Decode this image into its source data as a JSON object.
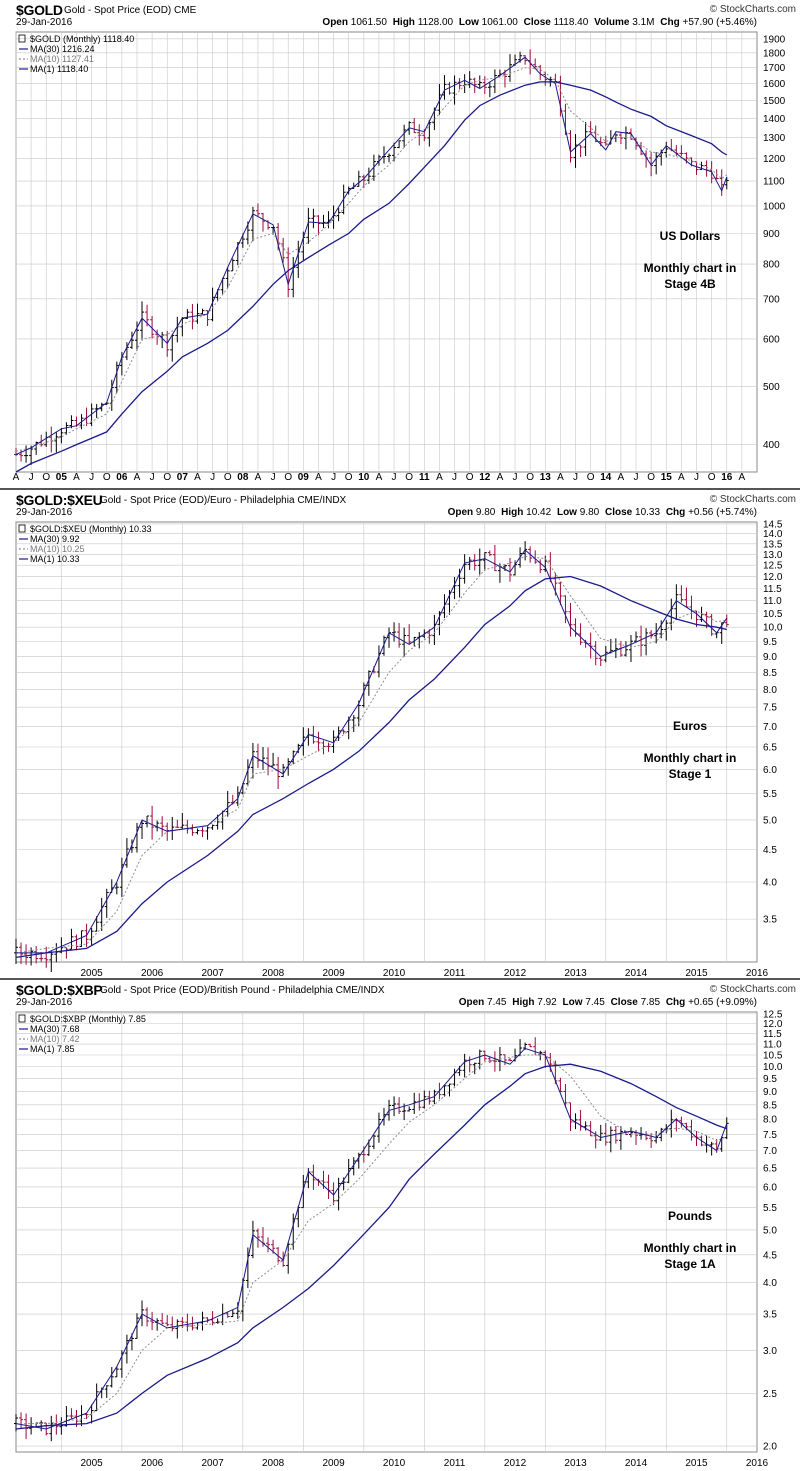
{
  "watermark": "© StockCharts.com",
  "colors": {
    "ma30": "#1a1a8c",
    "ma10": "#909090",
    "up": "#000000",
    "down": "#9b0a3a",
    "grid": "#c8c8c8"
  },
  "charts": [
    {
      "symbol": "$GOLD",
      "description": "Gold - Spot Price (EOD)",
      "exchange": "CME",
      "date": "29-Jan-2016",
      "ohlc": {
        "open_label": "Open",
        "open": "1061.50",
        "high_label": "High",
        "high": "1128.00",
        "low_label": "Low",
        "low": "1061.00",
        "close_label": "Close",
        "close": "1118.40",
        "volume_label": "Volume",
        "volume": "3.1M",
        "chg_label": "Chg",
        "chg": "+57.90 (+5.46%)"
      },
      "legend": [
        "$GOLD (Monthly) 1118.40",
        "MA(30) 1216.24",
        "MA(10) 1127.41",
        "MA(1) 1118.40"
      ],
      "annotations": [
        "US Dollars",
        "Monthly chart in",
        "Stage 4B"
      ]
    },
    {
      "symbol": "$GOLD:$XEU",
      "description": "Gold - Spot Price (EOD)/Euro - Philadelphia",
      "exchange": "CME/INDX",
      "date": "29-Jan-2016",
      "ohlc": {
        "open_label": "Open",
        "open": "9.80",
        "high_label": "High",
        "high": "10.42",
        "low_label": "Low",
        "low": "9.80",
        "close_label": "Close",
        "close": "10.33",
        "chg_label": "Chg",
        "chg": "+0.56 (+5.74%)"
      },
      "legend": [
        "$GOLD:$XEU (Monthly) 10.33",
        "MA(30) 9.92",
        "MA(10) 10.25",
        "MA(1) 10.33"
      ],
      "annotations": [
        "Euros",
        "Monthly chart in",
        "Stage 1"
      ]
    },
    {
      "symbol": "$GOLD:$XBP",
      "description": "Gold - Spot Price (EOD)/British Pound - Philadelphia",
      "exchange": "CME/INDX",
      "date": "29-Jan-2016",
      "ohlc": {
        "open_label": "Open",
        "open": "7.45",
        "high_label": "High",
        "high": "7.92",
        "low_label": "Low",
        "low": "7.45",
        "close_label": "Close",
        "close": "7.85",
        "chg_label": "Chg",
        "chg": "+0.65 (+9.09%)"
      },
      "legend": [
        "$GOLD:$XBP (Monthly) 7.85",
        "MA(30) 7.68",
        "MA(10) 7.42",
        "MA(1) 7.85"
      ],
      "annotations": [
        "Pounds",
        "Monthly chart in",
        "Stage 1A"
      ]
    }
  ],
  "chart_data": [
    {
      "type": "line",
      "title": "$GOLD Gold - Spot Price (EOD) CME (Monthly)",
      "yscale": "log",
      "ylim": [
        360,
        1950
      ],
      "yticks": [
        "400",
        "500",
        "600",
        "700",
        "800",
        "900",
        "1000",
        "1100",
        "1200",
        "1300",
        "1400",
        "1500",
        "1600",
        "1700",
        "1800",
        "1900"
      ],
      "xticks": [
        "A",
        "J",
        "O",
        "05",
        "A",
        "J",
        "O",
        "06",
        "A",
        "J",
        "O",
        "07",
        "A",
        "J",
        "O",
        "08",
        "A",
        "J",
        "O",
        "09",
        "A",
        "J",
        "O",
        "10",
        "A",
        "J",
        "O",
        "11",
        "A",
        "J",
        "O",
        "12",
        "A",
        "J",
        "O",
        "13",
        "A",
        "J",
        "O",
        "14",
        "A",
        "J",
        "O",
        "15",
        "A",
        "J",
        "O",
        "16",
        "A"
      ],
      "x": [
        "2004-04",
        "2004-07",
        "2005-01",
        "2005-04",
        "2005-10",
        "2006-01",
        "2006-05",
        "2006-10",
        "2007-01",
        "2007-06",
        "2007-10",
        "2008-03",
        "2008-07",
        "2008-10",
        "2009-02",
        "2009-06",
        "2009-10",
        "2010-01",
        "2010-06",
        "2010-10",
        "2011-01",
        "2011-05",
        "2011-09",
        "2011-12",
        "2012-04",
        "2012-09",
        "2012-12",
        "2013-03",
        "2013-06",
        "2013-10",
        "2014-01",
        "2014-03",
        "2014-06",
        "2014-10",
        "2015-01",
        "2015-06",
        "2015-10",
        "2015-12",
        "2016-01"
      ],
      "series": [
        {
          "name": "MA(1)",
          "values": [
            385,
            395,
            425,
            430,
            470,
            560,
            650,
            590,
            650,
            660,
            790,
            970,
            930,
            740,
            940,
            935,
            1060,
            1110,
            1240,
            1350,
            1330,
            1560,
            1620,
            1570,
            1650,
            1770,
            1660,
            1600,
            1230,
            1320,
            1240,
            1330,
            1320,
            1170,
            1260,
            1170,
            1140,
            1060,
            1118
          ]
        },
        {
          "name": "MA(10)",
          "values": [
            390,
            395,
            412,
            425,
            450,
            510,
            600,
            610,
            635,
            660,
            730,
            880,
            900,
            830,
            870,
            930,
            1010,
            1080,
            1170,
            1280,
            1330,
            1460,
            1590,
            1620,
            1640,
            1700,
            1690,
            1620,
            1440,
            1350,
            1280,
            1300,
            1300,
            1230,
            1220,
            1190,
            1150,
            1110,
            1127
          ]
        },
        {
          "name": "MA(30)",
          "values": [
            360,
            372,
            390,
            400,
            420,
            450,
            490,
            530,
            560,
            590,
            620,
            680,
            740,
            780,
            820,
            860,
            900,
            950,
            1010,
            1090,
            1160,
            1260,
            1390,
            1470,
            1530,
            1590,
            1610,
            1610,
            1590,
            1560,
            1520,
            1490,
            1450,
            1410,
            1360,
            1310,
            1270,
            1230,
            1216
          ]
        }
      ]
    },
    {
      "type": "line",
      "title": "$GOLD:$XEU Gold - Spot Price (EOD)/Euro - Philadelphia CME/INDX (Monthly)",
      "yscale": "log",
      "ylim": [
        3.0,
        14.6
      ],
      "yticks": [
        "3.5",
        "4.0",
        "4.5",
        "5.0",
        "5.5",
        "6.0",
        "6.5",
        "7.0",
        "7.5",
        "8.0",
        "8.5",
        "9.0",
        "9.5",
        "10.0",
        "10.5",
        "11.0",
        "11.5",
        "12.0",
        "12.5",
        "13.0",
        "13.5",
        "14.0",
        "14.5"
      ],
      "xticks": [
        "2005",
        "2006",
        "2007",
        "2008",
        "2009",
        "2010",
        "2011",
        "2012",
        "2013",
        "2014",
        "2015",
        "2016"
      ],
      "x": [
        "2004-04",
        "2004-10",
        "2005-06",
        "2005-12",
        "2006-05",
        "2006-10",
        "2007-06",
        "2007-12",
        "2008-03",
        "2008-09",
        "2009-02",
        "2009-07",
        "2009-12",
        "2010-06",
        "2010-10",
        "2011-03",
        "2011-09",
        "2012-01",
        "2012-06",
        "2012-09",
        "2013-01",
        "2013-06",
        "2013-12",
        "2014-06",
        "2014-11",
        "2015-03",
        "2015-07",
        "2015-11",
        "2016-01"
      ],
      "series": [
        {
          "name": "MA(1)",
          "values": [
            3.1,
            3.1,
            3.3,
            4.0,
            5.0,
            4.8,
            4.9,
            5.4,
            6.3,
            5.9,
            6.8,
            6.6,
            7.6,
            9.8,
            9.4,
            10.0,
            12.6,
            12.8,
            12.2,
            13.2,
            12.4,
            10.0,
            9.0,
            9.4,
            9.8,
            11.0,
            10.5,
            9.8,
            10.33
          ]
        },
        {
          "name": "MA(10)",
          "values": [
            3.1,
            3.15,
            3.2,
            3.6,
            4.4,
            4.8,
            4.9,
            5.2,
            5.9,
            6.0,
            6.3,
            6.6,
            7.1,
            8.5,
            9.2,
            9.8,
            11.3,
            12.3,
            12.6,
            12.9,
            12.8,
            11.2,
            9.6,
            9.3,
            9.5,
            10.3,
            10.6,
            10.2,
            10.25
          ]
        },
        {
          "name": "MA(30)",
          "values": [
            3.05,
            3.1,
            3.15,
            3.35,
            3.7,
            4.0,
            4.4,
            4.8,
            5.1,
            5.4,
            5.7,
            6.0,
            6.4,
            7.1,
            7.7,
            8.3,
            9.3,
            10.1,
            10.8,
            11.4,
            11.9,
            12.0,
            11.6,
            11.0,
            10.6,
            10.3,
            10.1,
            10.0,
            9.92
          ]
        }
      ]
    },
    {
      "type": "line",
      "title": "$GOLD:$XBP Gold - Spot Price (EOD)/British Pound - Philadelphia CME/INDX (Monthly)",
      "yscale": "log",
      "ylim": [
        1.95,
        12.6
      ],
      "yticks": [
        "2.0",
        "2.5",
        "3.0",
        "3.5",
        "4.0",
        "4.5",
        "5.0",
        "5.5",
        "6.0",
        "6.5",
        "7.0",
        "7.5",
        "8.0",
        "8.5",
        "9.0",
        "9.5",
        "10.0",
        "10.5",
        "11.0",
        "11.5",
        "12.0",
        "12.5"
      ],
      "xticks": [
        "2005",
        "2006",
        "2007",
        "2008",
        "2009",
        "2010",
        "2011",
        "2012",
        "2013",
        "2014",
        "2015",
        "2016"
      ],
      "x": [
        "2004-04",
        "2004-10",
        "2005-06",
        "2005-12",
        "2006-05",
        "2006-10",
        "2007-06",
        "2007-12",
        "2008-03",
        "2008-09",
        "2009-02",
        "2009-07",
        "2009-12",
        "2010-06",
        "2010-10",
        "2011-03",
        "2011-09",
        "2012-01",
        "2012-06",
        "2012-09",
        "2013-01",
        "2013-06",
        "2013-12",
        "2014-06",
        "2014-11",
        "2015-03",
        "2015-07",
        "2015-11",
        "2016-01"
      ],
      "series": [
        {
          "name": "MA(1)",
          "values": [
            2.2,
            2.15,
            2.3,
            2.8,
            3.5,
            3.3,
            3.4,
            3.6,
            4.9,
            4.4,
            6.4,
            5.8,
            6.8,
            8.3,
            8.5,
            8.8,
            10.2,
            10.5,
            10.1,
            10.8,
            10.5,
            8.0,
            7.4,
            7.6,
            7.4,
            8.0,
            7.4,
            7.0,
            7.85
          ]
        },
        {
          "name": "MA(10)",
          "values": [
            2.2,
            2.2,
            2.25,
            2.5,
            3.0,
            3.3,
            3.35,
            3.4,
            4.0,
            4.4,
            5.2,
            5.6,
            6.2,
            7.2,
            7.9,
            8.5,
            9.5,
            10.2,
            10.4,
            10.5,
            10.5,
            9.6,
            8.1,
            7.5,
            7.5,
            7.7,
            7.6,
            7.3,
            7.42
          ]
        },
        {
          "name": "MA(30)",
          "values": [
            2.15,
            2.18,
            2.2,
            2.3,
            2.5,
            2.7,
            2.9,
            3.1,
            3.3,
            3.6,
            3.9,
            4.3,
            4.8,
            5.5,
            6.2,
            6.9,
            7.8,
            8.5,
            9.2,
            9.7,
            10.0,
            10.1,
            9.8,
            9.3,
            8.8,
            8.4,
            8.1,
            7.8,
            7.68
          ]
        }
      ]
    }
  ]
}
